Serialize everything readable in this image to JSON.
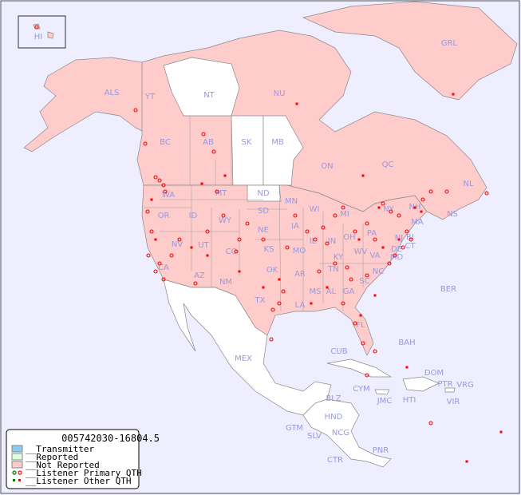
{
  "map": {
    "background_color": "#eeeeff",
    "not_reported_color": "#ffcccc",
    "reported_color": "#ddffdd",
    "transmitter_color": "#88ccee",
    "no_data_color": "#ffffff",
    "labels": [
      "HI",
      "ALS",
      "YT",
      "NT",
      "NU",
      "GRL",
      "BC",
      "AB",
      "SK",
      "MB",
      "ON",
      "QC",
      "NL",
      "NS",
      "WA",
      "MT",
      "ND",
      "MN",
      "WI",
      "MI",
      "NY",
      "NH",
      "MA",
      "RI",
      "CT",
      "NJ",
      "DE",
      "MD",
      "OR",
      "ID",
      "WY",
      "SD",
      "IA",
      "IL",
      "IN",
      "OH",
      "PA",
      "NV",
      "UT",
      "CO",
      "NE",
      "KS",
      "MO",
      "KY",
      "WV",
      "VA",
      "CA",
      "AZ",
      "NM",
      "OK",
      "AR",
      "TN",
      "NC",
      "SC",
      "TX",
      "LA",
      "MS",
      "AL",
      "GA",
      "FL",
      "BER",
      "MEX",
      "CUB",
      "BAH",
      "DOM",
      "PTR",
      "VRG",
      "CYM",
      "JMC",
      "HTI",
      "VIR",
      "BLZ",
      "HND",
      "GTM",
      "SLV",
      "NCG",
      "CTR",
      "PNR"
    ]
  },
  "legend": {
    "title": "005742030-16804.5",
    "items": [
      {
        "label": "__Transmitter",
        "color": "#88ccee"
      },
      {
        "label": "__Reported",
        "color": "#ddffdd"
      },
      {
        "label": "__Not Reported",
        "color": "#ffcccc"
      },
      {
        "label": "__Listener Primary QTH",
        "color": "#ff0000"
      },
      {
        "label": "__Listener Other QTH",
        "color": "#ff0000"
      }
    ]
  }
}
